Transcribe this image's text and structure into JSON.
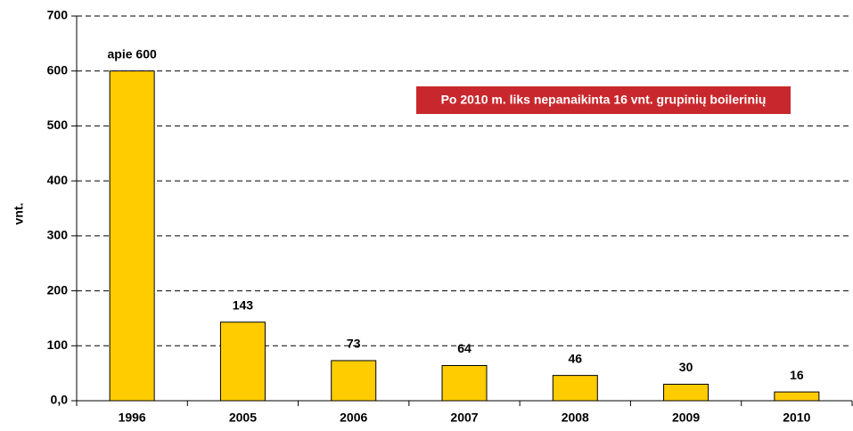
{
  "chart_data": {
    "type": "bar",
    "y_label": "vnt.",
    "annotation": "Po 2010 m. liks nepanaikinta 16 vnt. grupinių boilerinių",
    "categories": [
      "1996",
      "2005",
      "2006",
      "2007",
      "2008",
      "2009",
      "2010"
    ],
    "values": [
      600,
      143,
      73,
      64,
      46,
      30,
      16
    ],
    "value_labels": [
      "apie 600",
      "143",
      "73",
      "64",
      "46",
      "30",
      "16"
    ],
    "color": "#ffcc00",
    "annotation_color": "#c8282d",
    "ylim": [
      0,
      700
    ],
    "yticks": [
      {
        "value": 0,
        "label": "0,0"
      },
      100,
      200,
      300,
      400,
      500,
      600,
      700
    ],
    "grid": true
  }
}
